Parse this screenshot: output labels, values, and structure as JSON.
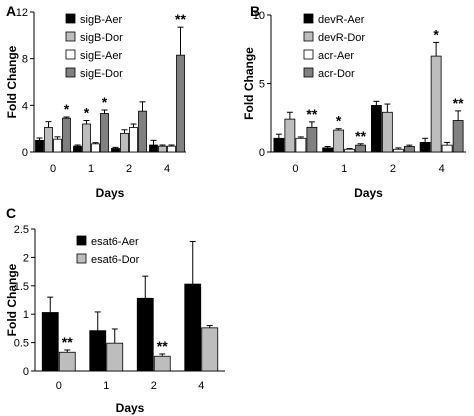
{
  "chart_data": [
    {
      "panel": "A",
      "type": "bar",
      "categories": [
        "0",
        "1",
        "2",
        "4"
      ],
      "xlabel": "Days",
      "ylabel": "Fold Change",
      "ylim": [
        0,
        12
      ],
      "yticks": [
        0,
        4,
        8,
        12
      ],
      "legend_position": "top-left",
      "series": [
        {
          "name": "sigB-Aer",
          "color": "#000000",
          "values": [
            1.0,
            0.5,
            0.3,
            0.6
          ],
          "errors": [
            0.2,
            0.1,
            0.1,
            0.4
          ]
        },
        {
          "name": "sigB-Dor",
          "color": "#bdbdbd",
          "values": [
            2.1,
            2.4,
            1.6,
            0.5
          ],
          "errors": [
            0.5,
            0.3,
            0.3,
            0.1
          ]
        },
        {
          "name": "sigE-Aer",
          "color": "#ffffff",
          "values": [
            1.1,
            0.7,
            2.1,
            0.5
          ],
          "errors": [
            0.2,
            0.1,
            0.3,
            0.1
          ]
        },
        {
          "name": "sigE-Dor",
          "color": "#808080",
          "values": [
            2.9,
            3.3,
            3.5,
            8.3
          ],
          "errors": [
            0.1,
            0.3,
            0.8,
            2.4
          ]
        }
      ],
      "annotations": [
        {
          "category": "0",
          "series": "sigE-Dor",
          "text": "*"
        },
        {
          "category": "1",
          "series": "sigB-Dor",
          "text": "*"
        },
        {
          "category": "1",
          "series": "sigE-Dor",
          "text": "*"
        },
        {
          "category": "4",
          "series": "sigE-Dor",
          "text": "**"
        }
      ]
    },
    {
      "panel": "B",
      "type": "bar",
      "categories": [
        "0",
        "1",
        "2",
        "4"
      ],
      "xlabel": "Days",
      "ylabel": "Fold Change",
      "ylim": [
        0,
        10
      ],
      "yticks": [
        0,
        5,
        10
      ],
      "legend_position": "top-left",
      "series": [
        {
          "name": "devR-Aer",
          "color": "#000000",
          "values": [
            1.0,
            0.3,
            3.4,
            0.7
          ],
          "errors": [
            0.3,
            0.1,
            0.3,
            0.3
          ]
        },
        {
          "name": "devR-Dor",
          "color": "#bdbdbd",
          "values": [
            2.4,
            1.6,
            2.9,
            7.0
          ],
          "errors": [
            0.5,
            0.1,
            0.6,
            1.0
          ]
        },
        {
          "name": "acr-Aer",
          "color": "#ffffff",
          "values": [
            1.0,
            0.2,
            0.2,
            0.5
          ],
          "errors": [
            0.1,
            0.05,
            0.1,
            0.2
          ]
        },
        {
          "name": "acr-Dor",
          "color": "#808080",
          "values": [
            1.8,
            0.5,
            0.4,
            2.3
          ],
          "errors": [
            0.4,
            0.1,
            0.1,
            0.7
          ]
        }
      ],
      "annotations": [
        {
          "category": "0",
          "series": "acr-Dor",
          "text": "**"
        },
        {
          "category": "1",
          "series": "devR-Dor",
          "text": "*"
        },
        {
          "category": "1",
          "series": "acr-Dor",
          "text": "**"
        },
        {
          "category": "4",
          "series": "devR-Dor",
          "text": "*"
        },
        {
          "category": "4",
          "series": "acr-Dor",
          "text": "**"
        }
      ]
    },
    {
      "panel": "C",
      "type": "bar",
      "categories": [
        "0",
        "1",
        "2",
        "4"
      ],
      "xlabel": "Days",
      "ylabel": "Fold Change",
      "ylim": [
        0,
        2.5
      ],
      "yticks": [
        0,
        0.5,
        1,
        1.5,
        2,
        2.5
      ],
      "ytick_labels": [
        "0",
        "0.5",
        "1",
        "1.5",
        "2",
        "2.5"
      ],
      "legend_position": "top-left",
      "series": [
        {
          "name": "esat6-Aer",
          "color": "#000000",
          "values": [
            1.03,
            0.71,
            1.28,
            1.53
          ],
          "errors": [
            0.27,
            0.33,
            0.39,
            0.75
          ]
        },
        {
          "name": "esat6-Dor",
          "color": "#bdbdbd",
          "values": [
            0.33,
            0.49,
            0.26,
            0.76
          ],
          "errors": [
            0.04,
            0.25,
            0.04,
            0.04
          ]
        }
      ],
      "annotations": [
        {
          "category": "0",
          "series": "esat6-Dor",
          "text": "**"
        },
        {
          "category": "2",
          "series": "esat6-Dor",
          "text": "**"
        }
      ]
    }
  ]
}
